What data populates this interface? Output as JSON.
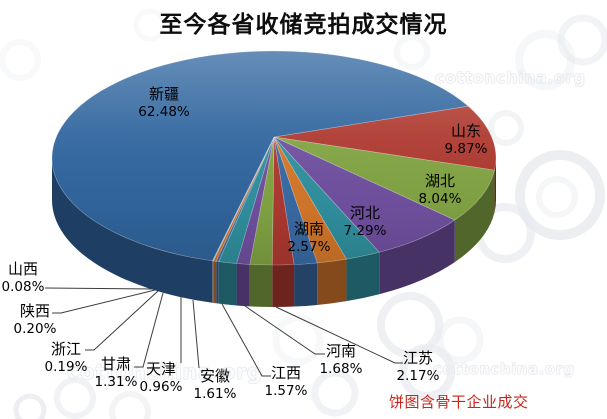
{
  "title": "至今各省收储竞拍成交情况",
  "note": "饼图含骨干企业成交",
  "watermark": "cottonchina.org",
  "chart_data": {
    "type": "pie",
    "style": "3d-pie",
    "title": "至今各省收储竞拍成交情况",
    "unit": "%",
    "legend_position": "none",
    "slices": [
      {
        "id": "xinjiang",
        "name": "新疆",
        "value": 62.48,
        "display": "62.48%",
        "color": "#31669F",
        "label_placement": "inside"
      },
      {
        "id": "shandong",
        "name": "山东",
        "value": 9.87,
        "display": "9.87%",
        "color": "#AF3A31",
        "label_placement": "inside"
      },
      {
        "id": "hubei",
        "name": "湖北",
        "value": 8.04,
        "display": "8.04%",
        "color": "#82A544",
        "label_placement": "inside"
      },
      {
        "id": "hebei",
        "name": "河北",
        "value": 7.29,
        "display": "7.29%",
        "color": "#7151A1",
        "label_placement": "inside"
      },
      {
        "id": "hunan",
        "name": "湖南",
        "value": 2.57,
        "display": "2.57%",
        "color": "#3191A0",
        "label_placement": "inside"
      },
      {
        "id": "jiangsu",
        "name": "江苏",
        "value": 2.17,
        "display": "2.17%",
        "color": "#D5782B",
        "label_placement": "outside"
      },
      {
        "id": "henan",
        "name": "河南",
        "value": 1.68,
        "display": "1.68%",
        "color": "#3A6BA5",
        "label_placement": "outside"
      },
      {
        "id": "jiangxi",
        "name": "江西",
        "value": 1.57,
        "display": "1.57%",
        "color": "#AF3A31",
        "label_placement": "outside"
      },
      {
        "id": "anhui",
        "name": "安徽",
        "value": 1.61,
        "display": "1.61%",
        "color": "#82A544",
        "label_placement": "outside"
      },
      {
        "id": "tianjin",
        "name": "天津",
        "value": 0.96,
        "display": "0.96%",
        "color": "#7151A1",
        "label_placement": "outside"
      },
      {
        "id": "gansu",
        "name": "甘肃",
        "value": 1.31,
        "display": "1.31%",
        "color": "#3191A0",
        "label_placement": "outside"
      },
      {
        "id": "zhejiang",
        "name": "浙江",
        "value": 0.19,
        "display": "0.19%",
        "color": "#4472A8",
        "label_placement": "outside"
      },
      {
        "id": "shaanxi",
        "name": "陕西",
        "value": 0.2,
        "display": "0.20%",
        "color": "#D5782B",
        "label_placement": "outside"
      },
      {
        "id": "shanxi",
        "name": "山西",
        "value": 0.08,
        "display": "0.08%",
        "color": "#B9BDC4",
        "label_placement": "outside"
      }
    ]
  }
}
